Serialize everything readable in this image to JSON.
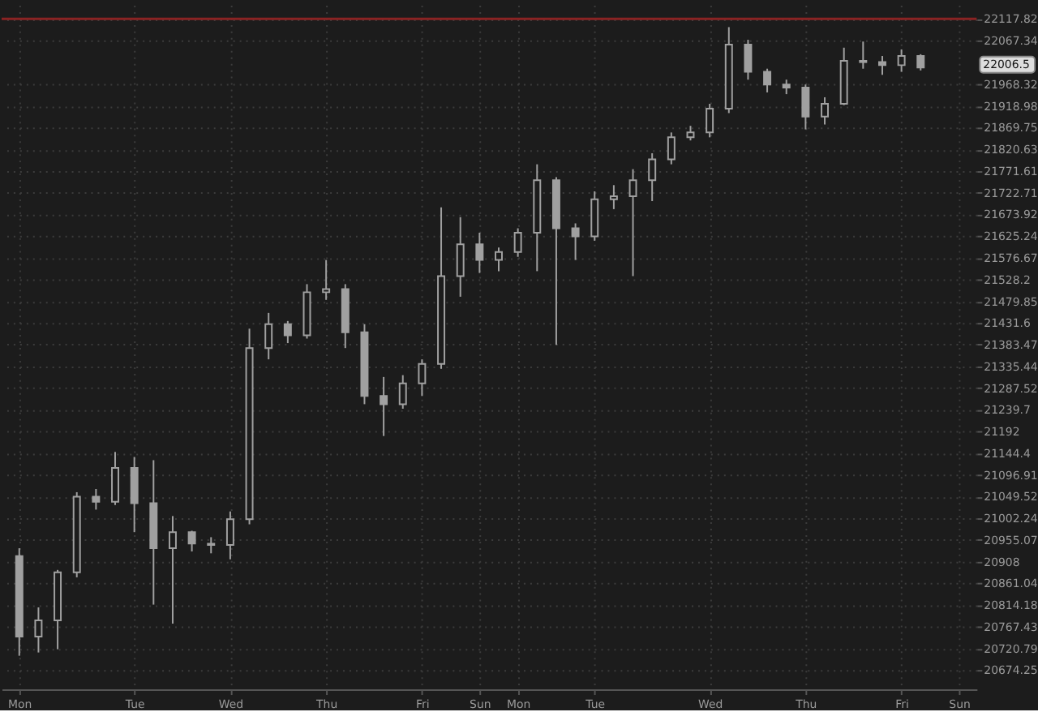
{
  "chart_data": {
    "type": "candlestick",
    "color": "#a0a0a0",
    "categories": [
      "Mon",
      null,
      null,
      null,
      null,
      null,
      "Tue",
      null,
      null,
      null,
      null,
      "Wed",
      null,
      null,
      null,
      null,
      "Thu",
      null,
      null,
      null,
      null,
      "Fri",
      null,
      null,
      "Sun",
      null,
      "Mon",
      null,
      null,
      null,
      "Tue",
      null,
      null,
      null,
      null,
      null,
      "Wed",
      null,
      null,
      null,
      null,
      "Thu",
      null,
      null,
      null,
      null,
      "Fri",
      null,
      null,
      "Sun"
    ],
    "ohlc": [
      [
        20920,
        20937,
        20705,
        20746
      ],
      [
        20746,
        20809,
        20712,
        20781
      ],
      [
        20781,
        20890,
        20719,
        20885
      ],
      [
        20885,
        21059,
        20874,
        21049
      ],
      [
        21049,
        21066,
        21021,
        21038
      ],
      [
        21038,
        21147,
        21031,
        21112
      ],
      [
        21112,
        21136,
        20972,
        21035
      ],
      [
        21035,
        21129,
        20815,
        20937
      ],
      [
        20937,
        21007,
        20774,
        20972
      ],
      [
        20972,
        20975,
        20930,
        20947
      ],
      [
        20947,
        20961,
        20926,
        20944
      ],
      [
        20944,
        21017,
        20913,
        21000
      ],
      [
        21000,
        21419,
        20989,
        21376
      ],
      [
        21376,
        21454,
        21351,
        21429
      ],
      [
        21429,
        21436,
        21387,
        21404
      ],
      [
        21404,
        21518,
        21397,
        21500
      ],
      [
        21500,
        21572,
        21483,
        21507
      ],
      [
        21507,
        21518,
        21376,
        21411
      ],
      [
        21411,
        21429,
        21252,
        21270
      ],
      [
        21270,
        21312,
        21182,
        21252
      ],
      [
        21252,
        21316,
        21242,
        21298
      ],
      [
        21298,
        21351,
        21270,
        21341
      ],
      [
        21341,
        21690,
        21330,
        21536
      ],
      [
        21536,
        21668,
        21490,
        21607
      ],
      [
        21607,
        21633,
        21543,
        21572
      ],
      [
        21572,
        21600,
        21547,
        21590
      ],
      [
        21590,
        21643,
        21579,
        21633
      ],
      [
        21633,
        21787,
        21547,
        21751
      ],
      [
        21751,
        21758,
        21383,
        21643
      ],
      [
        21643,
        21654,
        21572,
        21625
      ],
      [
        21625,
        21726,
        21615,
        21708
      ],
      [
        21708,
        21740,
        21686,
        21715
      ],
      [
        21715,
        21776,
        21536,
        21751
      ],
      [
        21751,
        21812,
        21704,
        21798
      ],
      [
        21798,
        21859,
        21787,
        21848
      ],
      [
        21848,
        21874,
        21841,
        21859
      ],
      [
        21859,
        21924,
        21848,
        21913
      ],
      [
        21913,
        22099,
        21903,
        22059
      ],
      [
        22059,
        22070,
        21979,
        21997
      ],
      [
        21997,
        22004,
        21950,
        21968
      ],
      [
        21968,
        21979,
        21946,
        21961
      ],
      [
        21961,
        21968,
        21866,
        21895
      ],
      [
        21895,
        21939,
        21877,
        21924
      ],
      [
        21924,
        22052,
        21921,
        22022
      ],
      [
        22022,
        22066,
        22004,
        22019
      ],
      [
        22019,
        22033,
        21990,
        22012
      ],
      [
        22012,
        22048,
        21997,
        22033
      ],
      [
        22033,
        22037,
        22000,
        22006.5
      ],
      null,
      null
    ],
    "log": true,
    "ylim": [
      20633,
      22150
    ],
    "yticks": [
      20674.25,
      20720.79,
      20767.43,
      20814.18,
      20861.04,
      20908,
      20955.07,
      21002.24,
      21049.52,
      21096.91,
      21144.4,
      21192,
      21239.7,
      21287.52,
      21335.44,
      21383.47,
      21431.6,
      21479.85,
      21528.2,
      21576.67,
      21625.24,
      21673.92,
      21722.71,
      21771.61,
      21820.63,
      21869.75,
      21918.98,
      21968.32,
      22067.34,
      22117.82
    ],
    "grid": true,
    "ref_lines": [
      {
        "axis": "y",
        "value": 22117.82,
        "color": "#8a2323"
      }
    ],
    "annotations": [
      "22006.5"
    ]
  }
}
